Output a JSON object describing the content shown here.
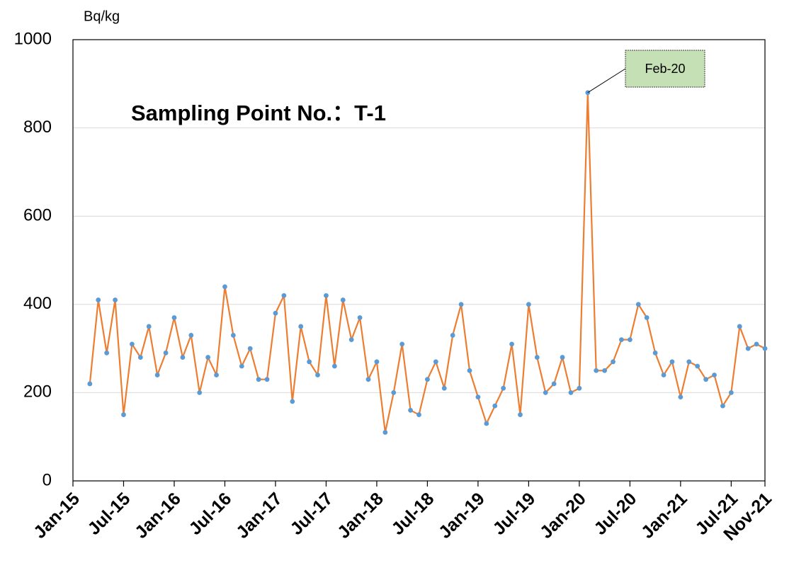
{
  "chart_data": {
    "type": "line",
    "title": "Sampling Point No.：T-1",
    "y_label": "Bq/kg",
    "x": [
      "2015-03",
      "2015-04",
      "2015-05",
      "2015-06",
      "2015-07",
      "2015-08",
      "2015-09",
      "2015-10",
      "2015-11",
      "2015-12",
      "2016-01",
      "2016-02",
      "2016-03",
      "2016-04",
      "2016-05",
      "2016-06",
      "2016-07",
      "2016-08",
      "2016-09",
      "2016-10",
      "2016-11",
      "2016-12",
      "2017-01",
      "2017-02",
      "2017-03",
      "2017-04",
      "2017-05",
      "2017-06",
      "2017-07",
      "2017-08",
      "2017-09",
      "2017-10",
      "2017-11",
      "2017-12",
      "2018-01",
      "2018-02",
      "2018-03",
      "2018-04",
      "2018-05",
      "2018-06",
      "2018-07",
      "2018-08",
      "2018-09",
      "2018-10",
      "2018-11",
      "2018-12",
      "2019-01",
      "2019-02",
      "2019-03",
      "2019-04",
      "2019-05",
      "2019-06",
      "2019-07",
      "2019-08",
      "2019-09",
      "2019-10",
      "2019-11",
      "2019-12",
      "2020-01",
      "2020-02",
      "2020-03",
      "2020-04",
      "2020-05",
      "2020-06",
      "2020-07",
      "2020-08",
      "2020-09",
      "2020-10",
      "2020-11",
      "2020-12",
      "2021-01",
      "2021-02",
      "2021-03",
      "2021-04",
      "2021-05",
      "2021-06",
      "2021-07",
      "2021-08",
      "2021-09",
      "2021-10",
      "2021-11"
    ],
    "series": [
      {
        "name": "T-1",
        "color": "#ed7d31",
        "marker_color": "#5b9bd5",
        "values": [
          220,
          410,
          290,
          410,
          150,
          310,
          280,
          350,
          240,
          290,
          370,
          280,
          330,
          200,
          280,
          240,
          440,
          330,
          260,
          300,
          230,
          230,
          380,
          420,
          180,
          350,
          270,
          240,
          420,
          260,
          410,
          320,
          370,
          230,
          270,
          110,
          200,
          310,
          160,
          150,
          230,
          270,
          210,
          330,
          400,
          250,
          190,
          130,
          170,
          210,
          310,
          150,
          400,
          280,
          200,
          220,
          280,
          200,
          210,
          880,
          250,
          250,
          270,
          320,
          320,
          400,
          370,
          290,
          240,
          270,
          190,
          270,
          260,
          230,
          240,
          170,
          200,
          350,
          300,
          310,
          300
        ]
      }
    ],
    "xlim": [
      "2015-01",
      "2021-11"
    ],
    "xticks": [
      {
        "value": "2015-01",
        "label": "Jan-15"
      },
      {
        "value": "2015-07",
        "label": "Jul-15"
      },
      {
        "value": "2016-01",
        "label": "Jan-16"
      },
      {
        "value": "2016-07",
        "label": "Jul-16"
      },
      {
        "value": "2017-01",
        "label": "Jan-17"
      },
      {
        "value": "2017-07",
        "label": "Jul-17"
      },
      {
        "value": "2018-01",
        "label": "Jan-18"
      },
      {
        "value": "2018-07",
        "label": "Jul-18"
      },
      {
        "value": "2019-01",
        "label": "Jan-19"
      },
      {
        "value": "2019-07",
        "label": "Jul-19"
      },
      {
        "value": "2020-01",
        "label": "Jan-20"
      },
      {
        "value": "2020-07",
        "label": "Jul-20"
      },
      {
        "value": "2021-01",
        "label": "Jan-21"
      },
      {
        "value": "2021-07",
        "label": "Jul-21"
      },
      {
        "value": "2021-11",
        "label": "Nov-21"
      }
    ],
    "ylim": [
      0,
      1000
    ],
    "yticks": [
      0,
      200,
      400,
      600,
      800,
      1000
    ],
    "grid": true,
    "annotations": [
      {
        "text": "Feb-20",
        "x": "2020-02"
      }
    ]
  }
}
